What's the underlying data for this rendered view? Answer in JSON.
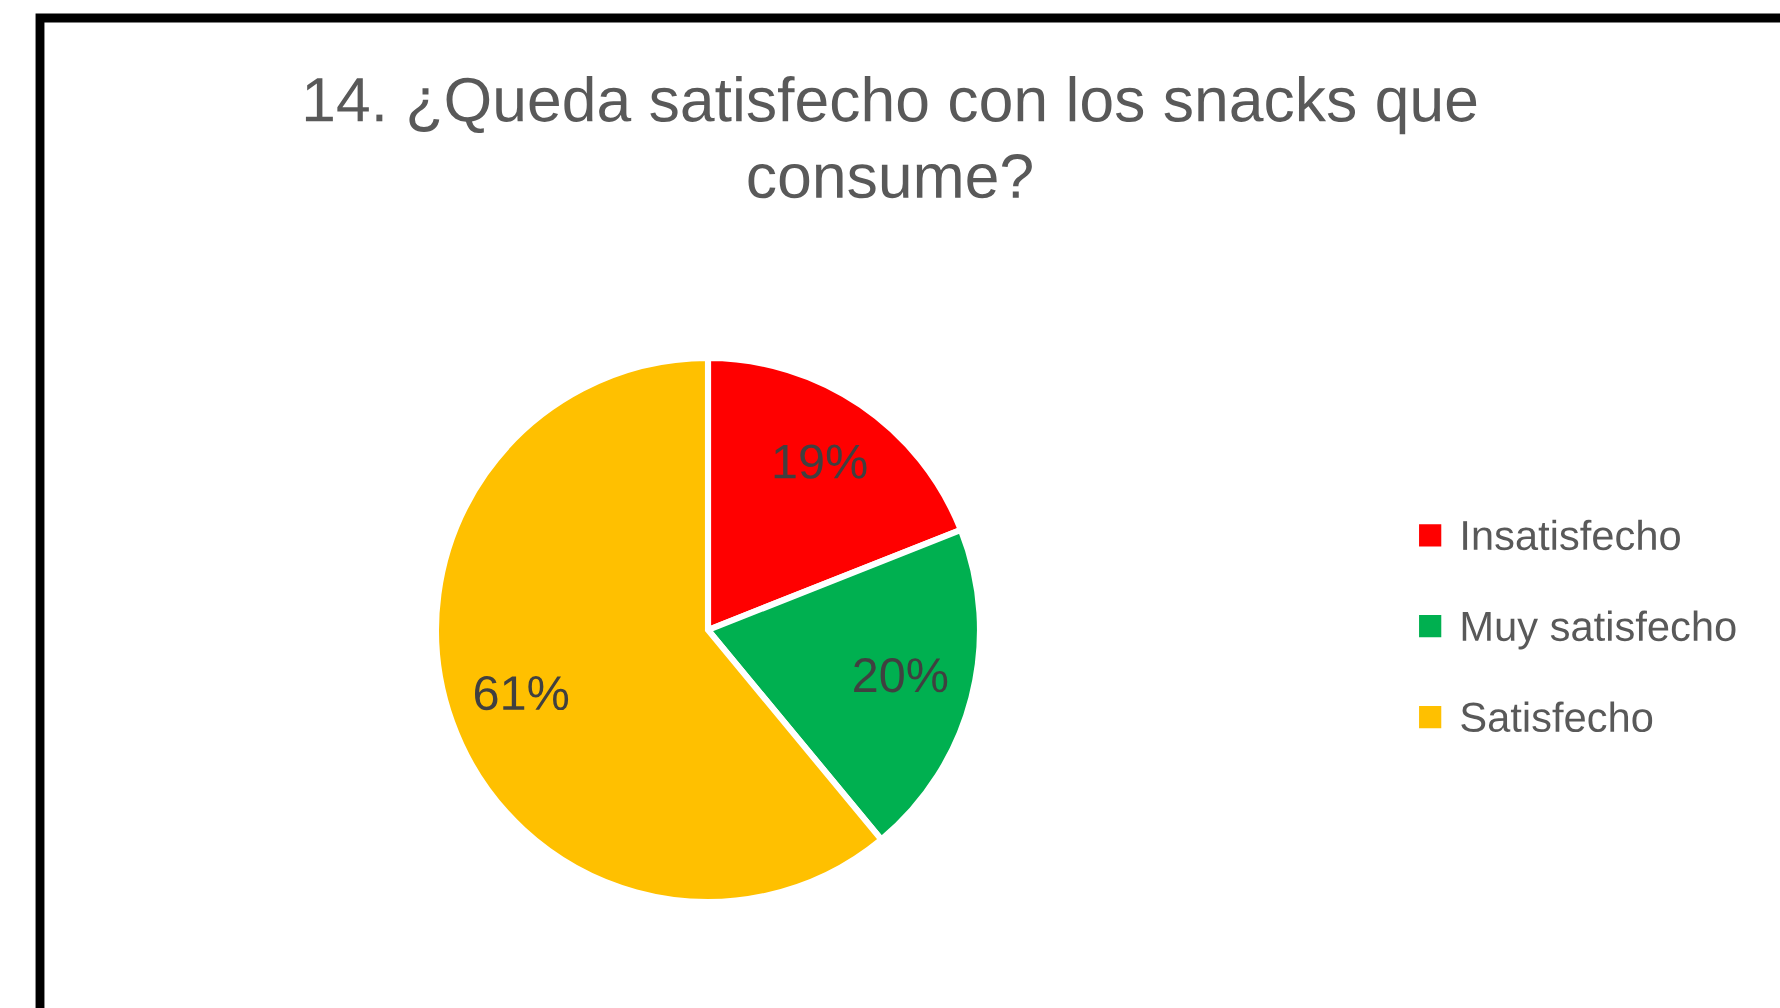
{
  "chart_data": {
    "type": "pie",
    "title": "14. ¿Queda satisfecho con los snacks que consume?",
    "categories": [
      "Insatisfecho",
      "Muy satisfecho",
      "Satisfecho"
    ],
    "values": [
      19,
      20,
      61
    ],
    "colors": [
      "#ff0000",
      "#00b050",
      "#ffc000"
    ],
    "value_labels": [
      "19%",
      "20%",
      "61%"
    ],
    "legend": "right"
  }
}
